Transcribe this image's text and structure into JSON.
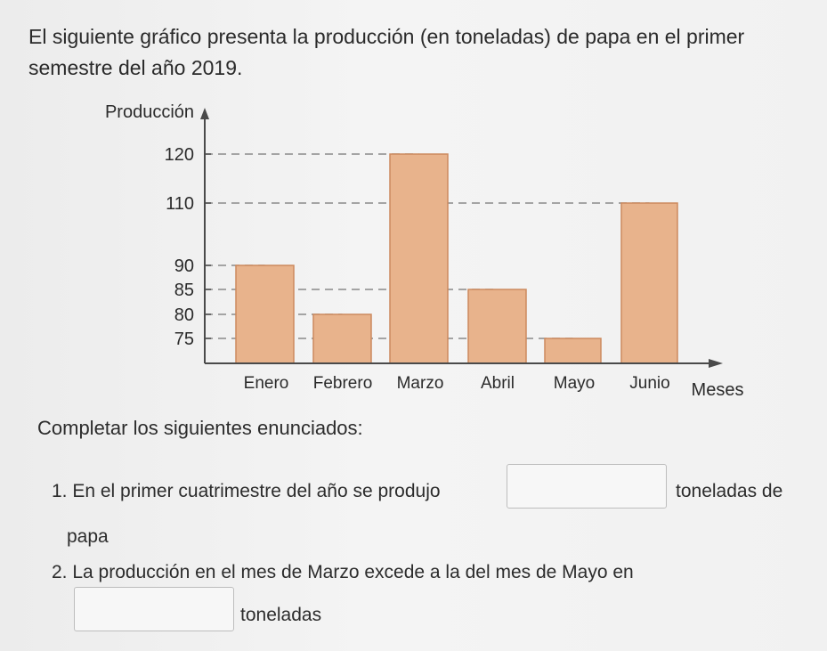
{
  "intro": "El siguiente gráfico presenta la producción (en toneladas) de papa en el primer semestre del año 2019.",
  "chart_data": {
    "type": "bar",
    "ylabel": "Producción",
    "xlabel": "Meses",
    "categories": [
      "Enero",
      "Febrero",
      "Marzo",
      "Abril",
      "Mayo",
      "Junio"
    ],
    "values": [
      90,
      80,
      120,
      85,
      75,
      110
    ],
    "yticks": [
      75,
      80,
      85,
      90,
      110,
      120
    ],
    "bar_color": "#e8b38c",
    "bar_edge": "#cc8a5e",
    "grid": "dashed lines from y-axis to each bar top"
  },
  "section_heading": "Completar los siguientes enunciados:",
  "questions": [
    {
      "number": "1.",
      "text_before": "En el primer cuatrimestre del año se produjo",
      "text_after": "toneladas de",
      "text_continued": "papa"
    },
    {
      "number": "2.",
      "text_before": "La producción en el mes de Marzo excede a la del mes de Mayo en",
      "text_after": "toneladas"
    }
  ]
}
